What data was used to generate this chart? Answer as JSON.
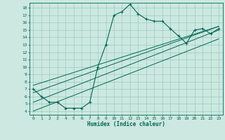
{
  "xlabel": "Humidex (Indice chaleur)",
  "bg_color": "#cce8e0",
  "grid_color": "#99ccbb",
  "line_color": "#006655",
  "xlim": [
    -0.5,
    23.5
  ],
  "ylim": [
    3.5,
    18.7
  ],
  "xticks": [
    0,
    1,
    2,
    3,
    4,
    5,
    6,
    7,
    8,
    9,
    10,
    11,
    12,
    13,
    14,
    15,
    16,
    17,
    18,
    19,
    20,
    21,
    22,
    23
  ],
  "yticks": [
    4,
    5,
    6,
    7,
    8,
    9,
    10,
    11,
    12,
    13,
    14,
    15,
    16,
    17,
    18
  ],
  "main_x": [
    0,
    1,
    2,
    3,
    4,
    5,
    6,
    7,
    8,
    9,
    10,
    11,
    12,
    13,
    14,
    15,
    16,
    17,
    18,
    19,
    20,
    21,
    22,
    23
  ],
  "main_y": [
    7.0,
    6.0,
    5.2,
    5.2,
    4.4,
    4.4,
    4.4,
    5.2,
    10.0,
    13.0,
    17.0,
    17.5,
    18.5,
    17.2,
    16.5,
    16.2,
    16.2,
    15.2,
    14.2,
    13.2,
    15.0,
    15.2,
    14.5,
    15.2
  ],
  "diag_lines": [
    {
      "x": [
        0,
        23
      ],
      "y": [
        4.0,
        13.8
      ]
    },
    {
      "x": [
        0,
        23
      ],
      "y": [
        5.2,
        15.0
      ]
    },
    {
      "x": [
        0,
        23
      ],
      "y": [
        6.5,
        15.5
      ]
    },
    {
      "x": [
        0,
        23
      ],
      "y": [
        7.5,
        15.5
      ]
    }
  ]
}
